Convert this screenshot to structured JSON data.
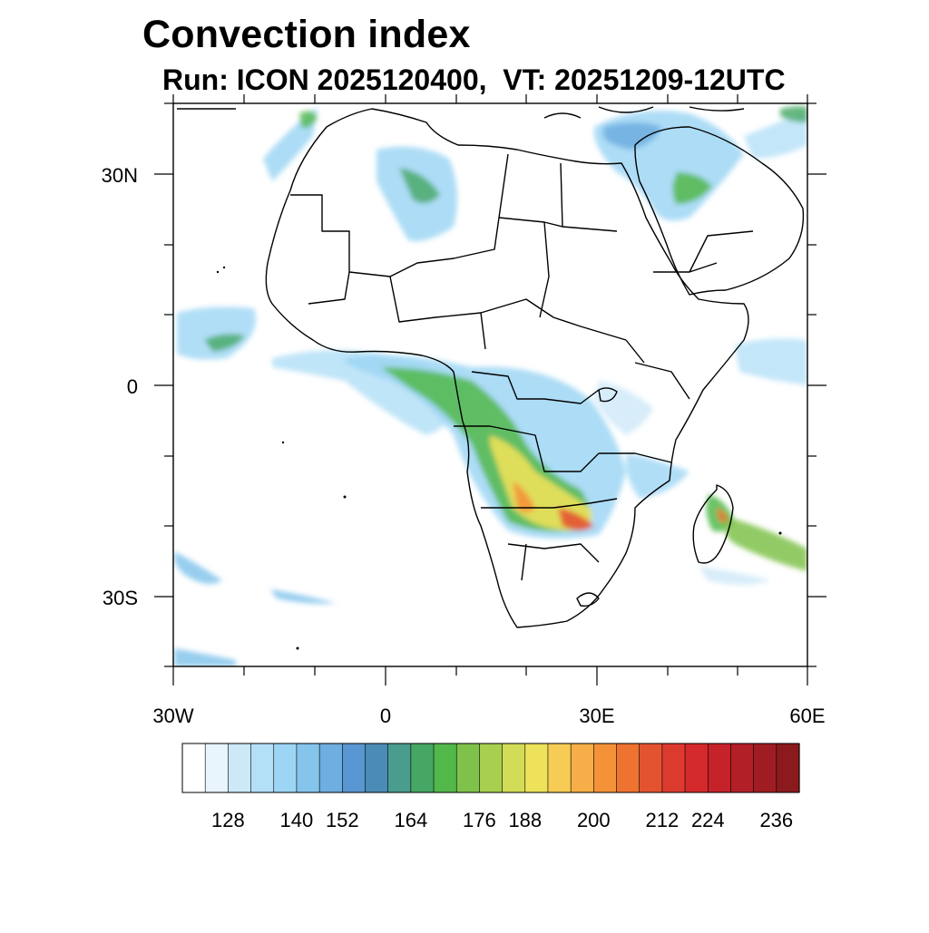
{
  "title": "Convection index",
  "subtitle": "Run: ICON 2025120400,  VT: 20251209-12UTC",
  "axes": {
    "lat_labels": [
      "30N",
      "0",
      "30S"
    ],
    "lon_labels": [
      "30W",
      "0",
      "30E",
      "60E"
    ],
    "lon_range": [
      -30,
      60
    ],
    "lat_range": [
      -40,
      40
    ]
  },
  "colorbar": {
    "tick_labels": [
      "128",
      "140",
      "152",
      "164",
      "176",
      "188",
      "200",
      "212",
      "224",
      "236"
    ],
    "colors": [
      "#ffffff",
      "#e8f5fc",
      "#cde9f8",
      "#b4e0f7",
      "#9dd6f5",
      "#85c5ec",
      "#6eaee0",
      "#5897d2",
      "#4a8cb6",
      "#4a9c8e",
      "#45a763",
      "#52b84a",
      "#7fc24b",
      "#a8cf4f",
      "#d2dc57",
      "#ede25a",
      "#f6cc55",
      "#f7ae48",
      "#f49238",
      "#ee7230",
      "#e45330",
      "#dd3a2f",
      "#d42a2b",
      "#c5222a",
      "#b21f27",
      "#9f1d22",
      "#8a1a1c"
    ]
  },
  "chart_data": {
    "type": "heatmap",
    "title": "Convection index",
    "subtitle": "Run: ICON 2025120400,  VT: 20251209-12UTC",
    "x_range": [
      -30,
      60
    ],
    "y_range": [
      -40,
      40
    ],
    "xticks": [
      -30,
      0,
      30,
      60
    ],
    "yticks": [
      30,
      0,
      -30
    ],
    "levels": [
      128,
      140,
      152,
      164,
      176,
      188,
      200,
      212,
      224,
      236
    ]
  }
}
